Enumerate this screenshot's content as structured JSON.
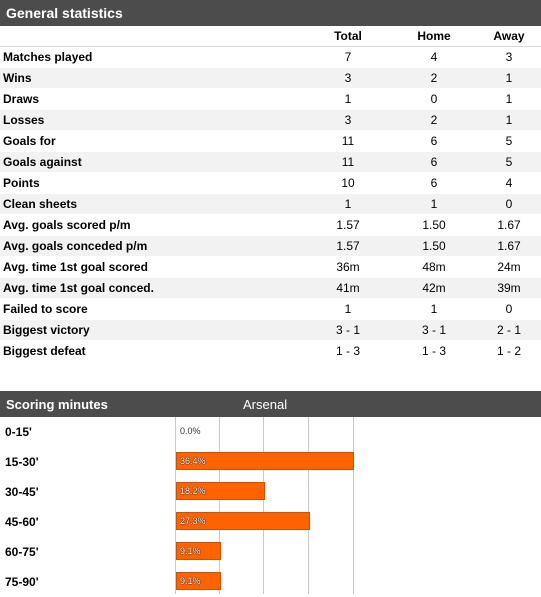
{
  "general": {
    "title": "General statistics",
    "headers": [
      "",
      "Total",
      "Home",
      "Away"
    ],
    "rows": [
      {
        "label": "Matches played",
        "total": "7",
        "home": "4",
        "away": "3"
      },
      {
        "label": "Wins",
        "total": "3",
        "home": "2",
        "away": "1"
      },
      {
        "label": "Draws",
        "total": "1",
        "home": "0",
        "away": "1"
      },
      {
        "label": "Losses",
        "total": "3",
        "home": "2",
        "away": "1"
      },
      {
        "label": "Goals for",
        "total": "11",
        "home": "6",
        "away": "5"
      },
      {
        "label": "Goals against",
        "total": "11",
        "home": "6",
        "away": "5"
      },
      {
        "label": "Points",
        "total": "10",
        "home": "6",
        "away": "4"
      },
      {
        "label": "Clean sheets",
        "total": "1",
        "home": "1",
        "away": "0"
      },
      {
        "label": "Avg. goals scored p/m",
        "total": "1.57",
        "home": "1.50",
        "away": "1.67"
      },
      {
        "label": "Avg. goals conceded p/m",
        "total": "1.57",
        "home": "1.50",
        "away": "1.67"
      },
      {
        "label": "Avg. time 1st goal scored",
        "total": "36m",
        "home": "48m",
        "away": "24m"
      },
      {
        "label": "Avg. time 1st goal conced.",
        "total": "41m",
        "home": "42m",
        "away": "39m"
      },
      {
        "label": "Failed to score",
        "total": "1",
        "home": "1",
        "away": "0"
      },
      {
        "label": "Biggest victory",
        "total": "3 - 1",
        "home": "3 - 1",
        "away": "2 - 1"
      },
      {
        "label": "Biggest defeat",
        "total": "1 - 3",
        "home": "1 - 3",
        "away": "1 - 2"
      }
    ]
  },
  "scoring": {
    "title": "Scoring minutes",
    "team": "Arsenal",
    "colors": {
      "bar": "#ff6300"
    },
    "scale_max_percent": 36.4
  },
  "chart_data": {
    "type": "bar",
    "orientation": "horizontal",
    "categories": [
      "0-15'",
      "15-30'",
      "30-45'",
      "45-60'",
      "60-75'",
      "75-90'"
    ],
    "values": [
      0.0,
      36.4,
      18.2,
      27.3,
      9.1,
      9.1
    ],
    "value_labels": [
      "0.0%",
      "36.4%",
      "18.2%",
      "27.3%",
      "9.1%",
      "9.1%"
    ],
    "grid": true
  }
}
